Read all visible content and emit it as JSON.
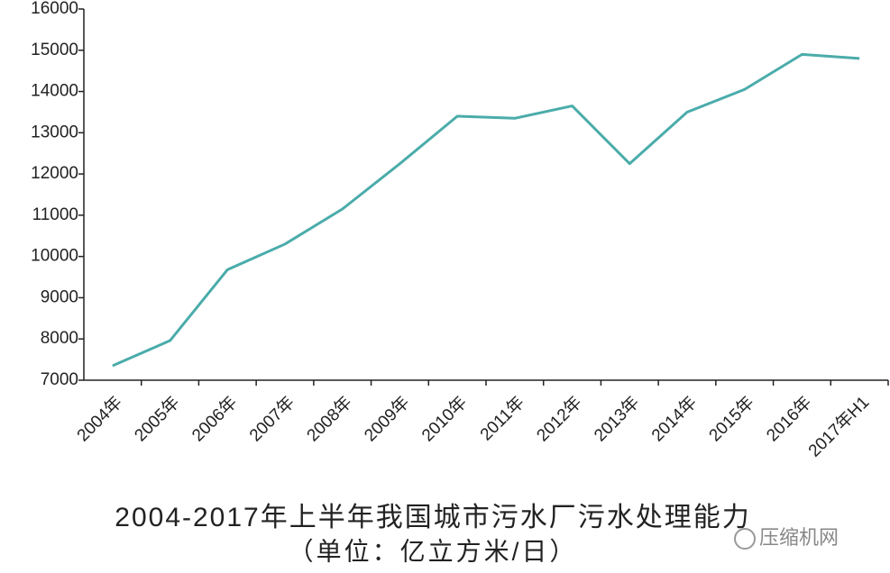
{
  "chart_data": {
    "type": "line",
    "title": "2004-2017年上半年我国城市污水厂污水处理能力",
    "subtitle": "（单位：亿立方米/日）",
    "watermark": "压缩机网",
    "categories": [
      "2004年",
      "2005年",
      "2006年",
      "2007年",
      "2008年",
      "2009年",
      "2010年",
      "2011年",
      "2012年",
      "2013年",
      "2014年",
      "2015年",
      "2016年",
      "2017年H1"
    ],
    "series": [
      {
        "name": "污水处理能力",
        "color": "#4aacaa",
        "values": [
          7350,
          7960,
          9680,
          10300,
          11150,
          12250,
          13400,
          13350,
          13650,
          12250,
          13500,
          14050,
          14900,
          14800
        ]
      }
    ],
    "ylim": [
      7000,
      16000
    ],
    "yticks": [
      7000,
      8000,
      9000,
      10000,
      11000,
      12000,
      13000,
      14000,
      15000,
      16000
    ]
  }
}
